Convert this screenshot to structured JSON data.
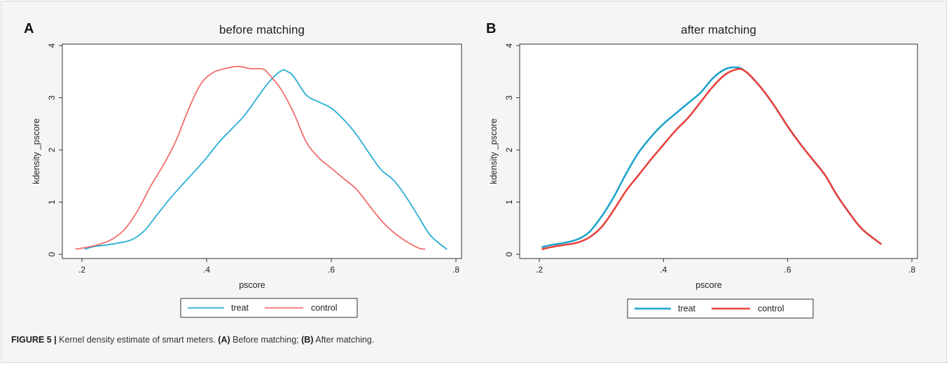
{
  "caption": {
    "label": "FIGURE 5 |",
    "text_1": "Kernel density estimate of smart meters.",
    "ref_a": "(A)",
    "text_2": "Before matching;",
    "ref_b": "(B)",
    "text_3": "After matching."
  },
  "chart_data": [
    {
      "type": "line",
      "panel_label": "A",
      "title": "before matching",
      "xlabel": "pscore",
      "ylabel": "kdensity _pscore",
      "xlim": [
        0.2,
        0.8
      ],
      "ylim": [
        0,
        4
      ],
      "xticks": [
        0.2,
        0.4,
        0.6,
        0.8
      ],
      "xtick_labels": [
        ".2",
        ".4",
        ".6",
        ".8"
      ],
      "yticks": [
        0,
        1,
        2,
        3,
        4
      ],
      "ytick_labels": [
        "0",
        "1",
        "2",
        "3",
        "4"
      ],
      "grid": false,
      "legend_position": "bottom",
      "series": [
        {
          "name": "treat",
          "color": "#27aed6",
          "x": [
            0.205,
            0.22,
            0.24,
            0.26,
            0.28,
            0.3,
            0.32,
            0.34,
            0.36,
            0.38,
            0.4,
            0.42,
            0.44,
            0.46,
            0.48,
            0.5,
            0.52,
            0.53,
            0.54,
            0.56,
            0.58,
            0.6,
            0.62,
            0.64,
            0.66,
            0.68,
            0.7,
            0.72,
            0.74,
            0.76,
            0.785
          ],
          "y": [
            0.1,
            0.15,
            0.18,
            0.22,
            0.28,
            0.45,
            0.75,
            1.05,
            1.32,
            1.58,
            1.85,
            2.15,
            2.4,
            2.65,
            2.98,
            3.3,
            3.52,
            3.5,
            3.4,
            3.05,
            2.92,
            2.8,
            2.58,
            2.3,
            1.95,
            1.62,
            1.42,
            1.1,
            0.72,
            0.35,
            0.1
          ]
        },
        {
          "name": "control",
          "color": "#f26d6d",
          "x": [
            0.19,
            0.21,
            0.23,
            0.25,
            0.27,
            0.29,
            0.31,
            0.33,
            0.35,
            0.37,
            0.39,
            0.41,
            0.43,
            0.45,
            0.47,
            0.49,
            0.5,
            0.52,
            0.54,
            0.56,
            0.58,
            0.6,
            0.62,
            0.64,
            0.66,
            0.68,
            0.7,
            0.72,
            0.74,
            0.75
          ],
          "y": [
            0.1,
            0.14,
            0.2,
            0.3,
            0.5,
            0.85,
            1.3,
            1.7,
            2.15,
            2.75,
            3.25,
            3.48,
            3.56,
            3.6,
            3.56,
            3.55,
            3.45,
            3.15,
            2.7,
            2.15,
            1.85,
            1.65,
            1.45,
            1.25,
            0.95,
            0.65,
            0.42,
            0.25,
            0.12,
            0.1
          ]
        }
      ]
    },
    {
      "type": "line",
      "panel_label": "B",
      "title": "after matching",
      "xlabel": "pscore",
      "ylabel": "kdensity _pscore",
      "xlim": [
        0.2,
        0.8
      ],
      "ylim": [
        0,
        4
      ],
      "xticks": [
        0.2,
        0.4,
        0.6,
        0.8
      ],
      "xtick_labels": [
        ".2",
        ".4",
        ".6",
        ".8"
      ],
      "yticks": [
        0,
        1,
        2,
        3,
        4
      ],
      "ytick_labels": [
        "0",
        "1",
        "2",
        "3",
        "4"
      ],
      "grid": false,
      "legend_position": "bottom",
      "series": [
        {
          "name": "treat",
          "color": "#1fa3cb",
          "x": [
            0.205,
            0.22,
            0.24,
            0.26,
            0.28,
            0.3,
            0.32,
            0.34,
            0.36,
            0.38,
            0.4,
            0.42,
            0.44,
            0.46,
            0.48,
            0.5,
            0.52,
            0.53,
            0.54,
            0.56,
            0.58,
            0.6,
            0.62,
            0.64,
            0.66,
            0.68,
            0.7,
            0.72,
            0.75
          ],
          "y": [
            0.14,
            0.18,
            0.22,
            0.28,
            0.42,
            0.72,
            1.1,
            1.55,
            1.95,
            2.25,
            2.5,
            2.7,
            2.9,
            3.1,
            3.38,
            3.55,
            3.58,
            3.52,
            3.42,
            3.15,
            2.82,
            2.45,
            2.12,
            1.82,
            1.52,
            1.12,
            0.78,
            0.48,
            0.2
          ]
        },
        {
          "name": "control",
          "color": "#e8423e",
          "x": [
            0.205,
            0.22,
            0.24,
            0.26,
            0.28,
            0.3,
            0.32,
            0.34,
            0.36,
            0.38,
            0.4,
            0.42,
            0.44,
            0.46,
            0.48,
            0.5,
            0.52,
            0.53,
            0.54,
            0.56,
            0.58,
            0.6,
            0.62,
            0.64,
            0.66,
            0.68,
            0.7,
            0.72,
            0.75
          ],
          "y": [
            0.1,
            0.14,
            0.18,
            0.22,
            0.32,
            0.52,
            0.85,
            1.22,
            1.52,
            1.82,
            2.1,
            2.38,
            2.62,
            2.92,
            3.22,
            3.45,
            3.55,
            3.52,
            3.42,
            3.15,
            2.82,
            2.45,
            2.12,
            1.82,
            1.52,
            1.12,
            0.78,
            0.48,
            0.2
          ]
        }
      ]
    }
  ]
}
